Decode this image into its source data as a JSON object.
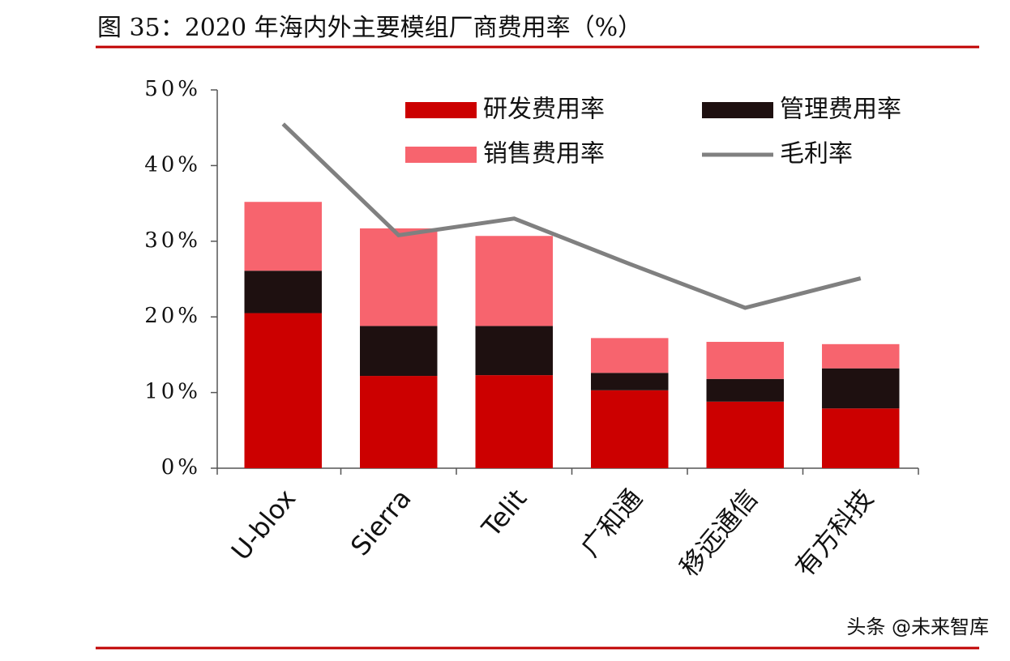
{
  "chart_data": {
    "type": "stacked_bar_line",
    "title": "图 35：2020 年海内外主要模组厂商费用率（%）",
    "categories": [
      "U-blox",
      "Sierra",
      "Telit",
      "广和通",
      "移远通信",
      "有方科技"
    ],
    "series": [
      {
        "name": "研发费用率",
        "color": "#cc0000",
        "kind": "bar",
        "values": [
          20.5,
          12.2,
          12.3,
          10.3,
          8.8,
          7.9
        ]
      },
      {
        "name": "管理费用率",
        "color": "#1e1010",
        "kind": "bar",
        "values": [
          5.6,
          6.6,
          6.5,
          2.3,
          3.0,
          5.3
        ]
      },
      {
        "name": "销售费用率",
        "color": "#f7646e",
        "kind": "bar",
        "values": [
          9.1,
          12.9,
          11.9,
          4.6,
          4.9,
          3.2
        ]
      },
      {
        "name": "毛利率",
        "color": "#808080",
        "kind": "line",
        "values": [
          45.5,
          30.8,
          33.0,
          27.0,
          21.2,
          25.1
        ]
      }
    ],
    "ylim": [
      0,
      50
    ],
    "yticks": [
      {
        "value": 0,
        "label": "0%"
      },
      {
        "value": 10,
        "label": "10%"
      },
      {
        "value": 20,
        "label": "20%"
      },
      {
        "value": 30,
        "label": "30%"
      },
      {
        "value": 40,
        "label": "40%"
      },
      {
        "value": 50,
        "label": "50%"
      }
    ],
    "watermark": "头条 @未来智库"
  }
}
